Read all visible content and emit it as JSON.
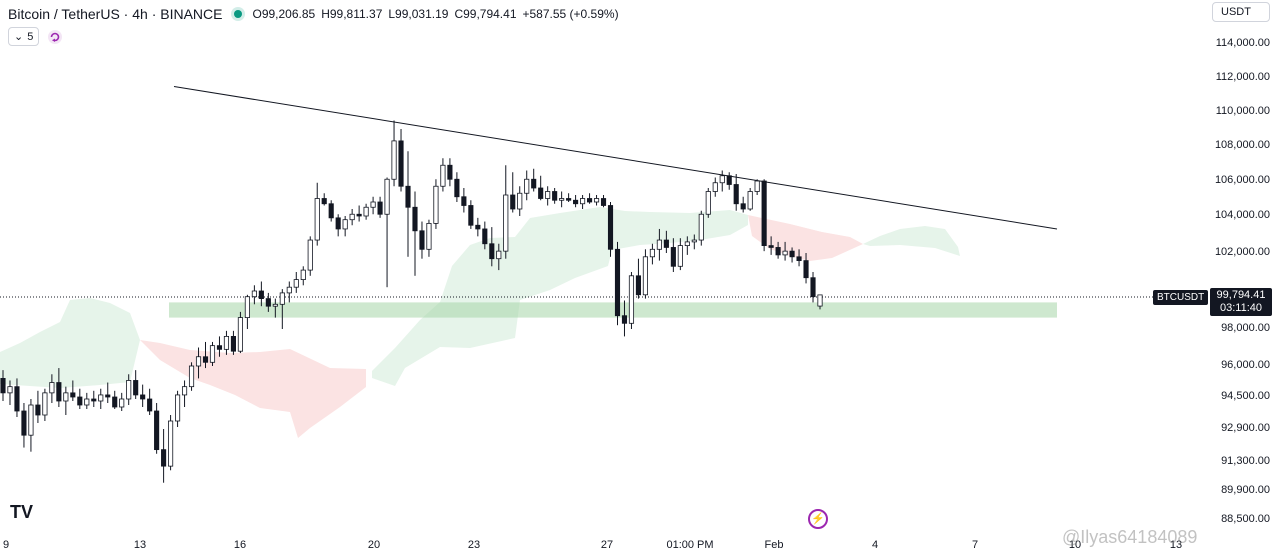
{
  "header": {
    "title": "Bitcoin / TetherUS · 4h · BINANCE",
    "open": "O99,206.85",
    "high": "H99,811.37",
    "low": "L99,031.19",
    "close": "C99,794.41",
    "change": "+587.55 (+0.59%)",
    "indicator_count": "5",
    "currency": "USDT",
    "colors": {
      "up": "#089981",
      "down": "#131722"
    }
  },
  "price_tag": {
    "symbol": "BTCUSDT",
    "price": "99,794.41",
    "countdown": "03:11:40"
  },
  "watermark": "@Ilyas64184089",
  "chart_data": {
    "type": "candlestick",
    "y_axis_ticks": [
      "114,000.00",
      "112,000.00",
      "110,000.00",
      "108,000.00",
      "106,000.00",
      "104,000.00",
      "102,000.00",
      "98,000.00",
      "96,000.00",
      "94,500.00",
      "92,900.00",
      "91,300.00",
      "89,900.00",
      "88,500.00"
    ],
    "x_axis_ticks": [
      "9",
      "13",
      "16",
      "20",
      "23",
      "27",
      "01:00 PM",
      "Feb",
      "4",
      "7",
      "10",
      "13"
    ],
    "last_price": 99794.41,
    "trendline": {
      "from": {
        "date": "Jan 14",
        "price": 111500
      },
      "to": {
        "date": "Feb 7",
        "price": 103300
      }
    },
    "support_zone": {
      "from": "Jan 14",
      "to": "Feb 7",
      "low": 98600,
      "high": 99400
    },
    "cloud_colors": {
      "bullish": "#e6f4ea",
      "bearish": "#fbe3e3"
    },
    "candles": [
      [
        95400,
        95800,
        94300,
        94700
      ],
      [
        94700,
        95300,
        94100,
        95000
      ],
      [
        95000,
        95400,
        93500,
        93800
      ],
      [
        93800,
        94200,
        92000,
        92600
      ],
      [
        92600,
        94400,
        91800,
        94100
      ],
      [
        94100,
        94800,
        93200,
        93600
      ],
      [
        93600,
        94900,
        93300,
        94700
      ],
      [
        94700,
        95600,
        94200,
        95200
      ],
      [
        95200,
        95900,
        94000,
        94300
      ],
      [
        94300,
        95000,
        93600,
        94700
      ],
      [
        94700,
        95300,
        94300,
        94500
      ],
      [
        94500,
        94900,
        93900,
        94100
      ],
      [
        94100,
        94700,
        93900,
        94400
      ],
      [
        94400,
        94800,
        94000,
        94300
      ],
      [
        94300,
        94900,
        93900,
        94600
      ],
      [
        94600,
        95200,
        94200,
        94500
      ],
      [
        94500,
        94800,
        93900,
        94000
      ],
      [
        94000,
        94700,
        93800,
        94400
      ],
      [
        94400,
        95600,
        94100,
        95300
      ],
      [
        95300,
        95800,
        94400,
        94600
      ],
      [
        94600,
        95100,
        94000,
        94400
      ],
      [
        94400,
        94900,
        93600,
        93800
      ],
      [
        93800,
        94200,
        91700,
        91900
      ],
      [
        91900,
        92900,
        90300,
        91100
      ],
      [
        91100,
        93600,
        90900,
        93300
      ],
      [
        93300,
        94800,
        93000,
        94600
      ],
      [
        94600,
        95300,
        94000,
        95000
      ],
      [
        95000,
        96200,
        94800,
        96000
      ],
      [
        96000,
        97000,
        95400,
        96500
      ],
      [
        96500,
        97300,
        95900,
        96200
      ],
      [
        96200,
        97300,
        96000,
        97100
      ],
      [
        97100,
        97600,
        96500,
        96900
      ],
      [
        96900,
        97900,
        96600,
        97600
      ],
      [
        97600,
        97900,
        96600,
        96800
      ],
      [
        96800,
        98900,
        96700,
        98600
      ],
      [
        98600,
        99800,
        98000,
        99700
      ],
      [
        99700,
        100300,
        99300,
        100000
      ],
      [
        100000,
        100500,
        99200,
        99600
      ],
      [
        99600,
        99900,
        98900,
        99200
      ],
      [
        99200,
        99600,
        98600,
        99300
      ],
      [
        99300,
        100100,
        98000,
        99900
      ],
      [
        99900,
        100500,
        99400,
        100200
      ],
      [
        100200,
        101000,
        99900,
        100600
      ],
      [
        100600,
        101300,
        100300,
        101100
      ],
      [
        101100,
        102900,
        100800,
        102700
      ],
      [
        102700,
        105900,
        102400,
        105000
      ],
      [
        105000,
        105300,
        104600,
        104700
      ],
      [
        104700,
        104900,
        103700,
        103900
      ],
      [
        103900,
        104100,
        102900,
        103300
      ],
      [
        103300,
        104000,
        102900,
        103800
      ],
      [
        103800,
        104400,
        103500,
        104100
      ],
      [
        104100,
        104600,
        103700,
        104000
      ],
      [
        104000,
        104700,
        103800,
        104500
      ],
      [
        104500,
        105100,
        104100,
        104800
      ],
      [
        104800,
        105100,
        103900,
        104100
      ],
      [
        104100,
        106200,
        100200,
        106100
      ],
      [
        106100,
        109500,
        105700,
        108300
      ],
      [
        108300,
        109000,
        105400,
        105700
      ],
      [
        105700,
        107700,
        101800,
        104500
      ],
      [
        104500,
        105400,
        100800,
        103200
      ],
      [
        103200,
        103700,
        101700,
        102200
      ],
      [
        102200,
        103800,
        101800,
        103600
      ],
      [
        103600,
        106100,
        103300,
        105700
      ],
      [
        105700,
        107300,
        105400,
        106900
      ],
      [
        106900,
        107300,
        105700,
        106100
      ],
      [
        106100,
        106500,
        104800,
        105100
      ],
      [
        105100,
        105600,
        104200,
        104600
      ],
      [
        104600,
        104900,
        103300,
        103500
      ],
      [
        103500,
        103900,
        102900,
        103300
      ],
      [
        103300,
        103700,
        102200,
        102500
      ],
      [
        102500,
        103400,
        101300,
        101700
      ],
      [
        101700,
        102500,
        101100,
        102100
      ],
      [
        102100,
        106900,
        101700,
        105200
      ],
      [
        105200,
        106500,
        104200,
        104400
      ],
      [
        104400,
        105700,
        104000,
        105300
      ],
      [
        105300,
        106600,
        104900,
        106100
      ],
      [
        106100,
        106700,
        105400,
        105600
      ],
      [
        105600,
        106300,
        104900,
        105000
      ],
      [
        105000,
        105700,
        104600,
        105400
      ],
      [
        105400,
        105600,
        104700,
        104900
      ],
      [
        104900,
        105400,
        104500,
        105000
      ],
      [
        105000,
        105300,
        104800,
        104900
      ],
      [
        104900,
        105200,
        104500,
        104700
      ],
      [
        104700,
        105200,
        104400,
        105000
      ],
      [
        105000,
        105300,
        104700,
        104800
      ],
      [
        104800,
        105200,
        104600,
        105000
      ],
      [
        105000,
        105200,
        104500,
        104600
      ],
      [
        104600,
        104800,
        101800,
        102200
      ],
      [
        102200,
        102600,
        98200,
        98700
      ],
      [
        98700,
        99500,
        97600,
        98300
      ],
      [
        98300,
        101000,
        98000,
        100800
      ],
      [
        100800,
        101700,
        99600,
        99800
      ],
      [
        99800,
        102200,
        99600,
        101800
      ],
      [
        101800,
        102500,
        101400,
        102200
      ],
      [
        102200,
        103300,
        101600,
        102700
      ],
      [
        102700,
        103200,
        102000,
        102300
      ],
      [
        102300,
        102800,
        101000,
        101300
      ],
      [
        101300,
        102800,
        101100,
        102400
      ],
      [
        102400,
        102900,
        101900,
        102600
      ],
      [
        102600,
        103000,
        102200,
        102700
      ],
      [
        102700,
        104300,
        102400,
        104100
      ],
      [
        104100,
        105600,
        103900,
        105400
      ],
      [
        105400,
        106200,
        105100,
        105900
      ],
      [
        105900,
        106600,
        105400,
        106300
      ],
      [
        106300,
        106500,
        105500,
        105800
      ],
      [
        105800,
        106400,
        104300,
        104700
      ],
      [
        104700,
        105100,
        104200,
        104400
      ],
      [
        104400,
        105600,
        104300,
        105400
      ],
      [
        105400,
        106100,
        105200,
        106000
      ],
      [
        106000,
        106100,
        102100,
        102400
      ],
      [
        102400,
        102900,
        101900,
        102300
      ],
      [
        102300,
        102600,
        101700,
        101900
      ],
      [
        101900,
        102600,
        101600,
        102100
      ],
      [
        102100,
        102300,
        101500,
        101800
      ],
      [
        101800,
        102200,
        101300,
        101600
      ],
      [
        101600,
        102000,
        100400,
        100700
      ],
      [
        100700,
        101000,
        99400,
        99700
      ],
      [
        99206.85,
        99811.37,
        99031.19,
        99794.41
      ]
    ]
  }
}
